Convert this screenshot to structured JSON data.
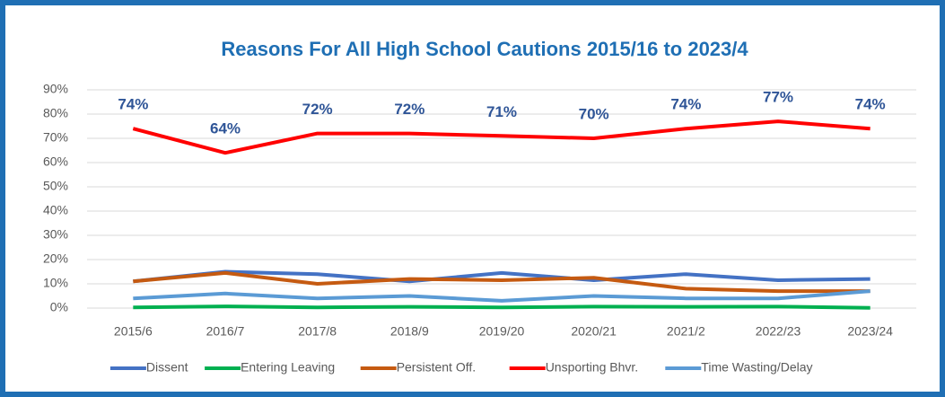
{
  "chart_data": {
    "type": "line",
    "title": "Reasons For All High School Cautions 2015/16 to 2023/4",
    "categories": [
      "2015/6",
      "2016/7",
      "2017/8",
      "2018/9",
      "2019/20",
      "2020/21",
      "2021/2",
      "2022/23",
      "2023/24"
    ],
    "series": [
      {
        "name": "Dissent",
        "color": "#4472c4",
        "values": [
          11,
          15,
          14,
          11,
          14.5,
          11.5,
          14,
          11.5,
          12
        ]
      },
      {
        "name": "Entering Leaving",
        "color": "#00b050",
        "values": [
          0.3,
          0.7,
          0.3,
          0.5,
          0.3,
          0.6,
          0.5,
          0.6,
          0.1
        ]
      },
      {
        "name": "Persistent Off.",
        "color": "#c55a11",
        "values": [
          11,
          14.5,
          10,
          12,
          11.5,
          12.5,
          8,
          7,
          7
        ]
      },
      {
        "name": "Unsporting Bhvr.",
        "color": "#ff0000",
        "values": [
          74,
          64,
          72,
          72,
          71,
          70,
          74,
          77,
          74
        ],
        "value_labels": [
          "74%",
          "64%",
          "72%",
          "72%",
          "71%",
          "70%",
          "74%",
          "77%",
          "74%"
        ]
      },
      {
        "name": "Time Wasting/Delay",
        "color": "#5b9bd5",
        "values": [
          4,
          6,
          4,
          5,
          3,
          5,
          4,
          4,
          7
        ]
      }
    ],
    "ylim": [
      0,
      90
    ],
    "yticks": [
      {
        "value": 0,
        "label": "0%"
      },
      {
        "value": 10,
        "label": "10%"
      },
      {
        "value": 20,
        "label": "20%"
      },
      {
        "value": 30,
        "label": "30%"
      },
      {
        "value": 40,
        "label": "40%"
      },
      {
        "value": 50,
        "label": "50%"
      },
      {
        "value": 60,
        "label": "60%"
      },
      {
        "value": 70,
        "label": "70%"
      },
      {
        "value": 80,
        "label": "80%"
      },
      {
        "value": 90,
        "label": "90%"
      }
    ],
    "grid": true,
    "legend": "bottom"
  }
}
